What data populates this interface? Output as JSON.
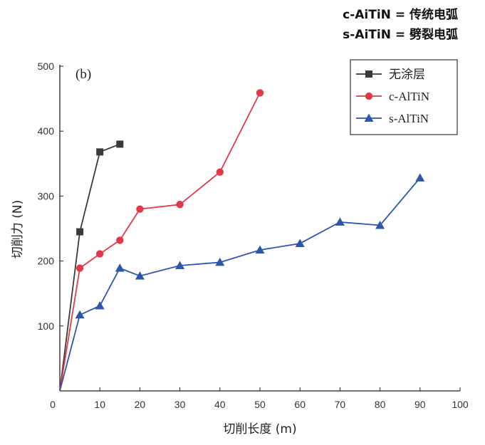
{
  "notes": {
    "line1": "c-AiTiN = 传统电弧",
    "line2": "s-AiTiN = 劈裂电弧"
  },
  "chart_data": {
    "type": "line",
    "panel_label": "(b)",
    "xlabel": "切削长度 (m)",
    "ylabel": "切削力 (N)",
    "xlim": [
      0,
      100
    ],
    "ylim": [
      0,
      500
    ],
    "x_ticks": [
      0,
      10,
      20,
      30,
      40,
      50,
      60,
      70,
      80,
      90,
      100
    ],
    "y_ticks": [
      100,
      200,
      300,
      400,
      500
    ],
    "grid": false,
    "legend_position": "top-right",
    "series": [
      {
        "name": "无涂层",
        "color": "#3a3a3a",
        "marker": "square",
        "x": [
          0,
          5,
          10,
          15
        ],
        "y": [
          0,
          245,
          368,
          380
        ]
      },
      {
        "name": "c-AlTiN",
        "color": "#e0394a",
        "marker": "circle",
        "x": [
          0,
          5,
          10,
          15,
          20,
          30,
          40,
          50
        ],
        "y": [
          0,
          189,
          211,
          232,
          280,
          287,
          337,
          459
        ]
      },
      {
        "name": "s-AlTiN",
        "color": "#2f56a8",
        "marker": "triangle",
        "x": [
          0,
          5,
          10,
          15,
          20,
          30,
          40,
          50,
          60,
          70,
          80,
          90
        ],
        "y": [
          0,
          117,
          131,
          189,
          177,
          193,
          198,
          217,
          227,
          260,
          255,
          328
        ]
      }
    ]
  }
}
